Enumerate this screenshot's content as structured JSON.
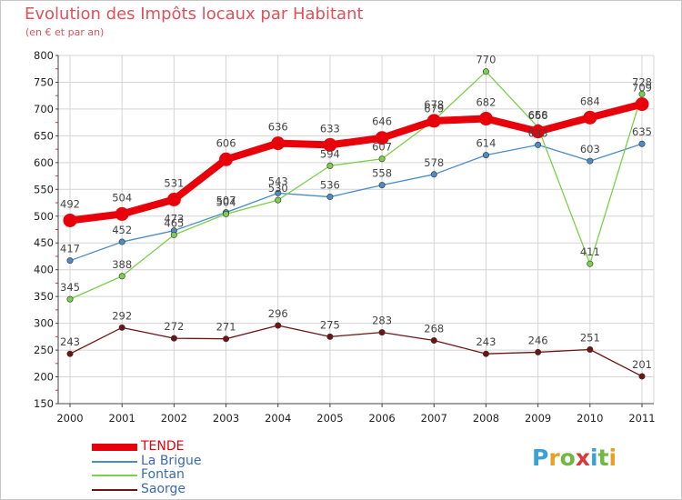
{
  "title": "Evolution des Impôts locaux par Habitant",
  "subtitle": "(en € et par an)",
  "logo": {
    "text": "Proxiti",
    "letter_colors": [
      "#3aa0d8",
      "#e8a020",
      "#6fb842",
      "#d83a3a",
      "#3aa0d8",
      "#6fb842",
      "#e8a020"
    ]
  },
  "chart_data": {
    "type": "line",
    "title": "Evolution des Impôts locaux par Habitant",
    "subtitle": "(en € et par an)",
    "xlabel": "",
    "ylabel": "",
    "ylim": [
      150,
      800
    ],
    "yticks": [
      150,
      200,
      250,
      300,
      350,
      400,
      450,
      500,
      550,
      600,
      650,
      700,
      750,
      800
    ],
    "grid": true,
    "categories": [
      "2000",
      "2001",
      "2002",
      "2003",
      "2004",
      "2005",
      "2006",
      "2007",
      "2008",
      "2009",
      "2010",
      "2011"
    ],
    "legend_position": "bottom-left",
    "series": [
      {
        "name": "TENDE",
        "color": "#e8000b",
        "values": [
          492,
          504,
          531,
          606,
          636,
          633,
          646,
          678,
          682,
          658,
          684,
          709
        ]
      },
      {
        "name": "La Brigue",
        "color": "#4a8cc8",
        "values": [
          417,
          452,
          473,
          507,
          543,
          536,
          558,
          578,
          614,
          633,
          603,
          635
        ]
      },
      {
        "name": "Fontan",
        "color": "#7ad048",
        "values": [
          345,
          388,
          465,
          504,
          530,
          594,
          607,
          679,
          770,
          666,
          411,
          728
        ]
      },
      {
        "name": "Saorge",
        "color": "#6e1414",
        "values": [
          243,
          292,
          272,
          271,
          296,
          275,
          283,
          268,
          243,
          246,
          251,
          201
        ]
      }
    ],
    "data_labels": [
      [
        "492",
        "504",
        "531",
        "606",
        "636",
        "633",
        "646",
        "678",
        "682",
        "658",
        "684",
        "709"
      ],
      [
        "417",
        "452",
        "473",
        "507",
        "543",
        "536",
        "558",
        "578",
        "614",
        "633",
        "603",
        "635"
      ],
      [
        "345",
        "388",
        "465",
        "504",
        "530",
        "594",
        "607",
        "679",
        "770",
        "666",
        "411",
        "728"
      ],
      [
        "243",
        "292",
        "272",
        "271",
        "296",
        "275",
        "283",
        "268",
        "243",
        "246",
        "251",
        "201"
      ]
    ]
  }
}
